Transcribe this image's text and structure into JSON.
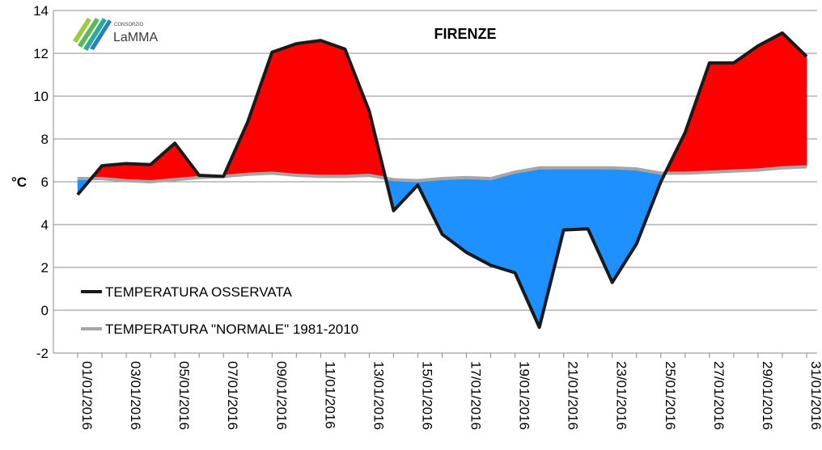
{
  "chart_data": {
    "type": "area",
    "title": "FIRENZE",
    "ylabel": "°C",
    "ylim": [
      -2,
      14
    ],
    "yticks": [
      -2,
      0,
      2,
      4,
      6,
      8,
      10,
      12,
      14
    ],
    "grid": true,
    "legend_placement": "bottom-left",
    "x": [
      "01/01/2016",
      "02/01/2016",
      "03/01/2016",
      "04/01/2016",
      "05/01/2016",
      "06/01/2016",
      "07/01/2016",
      "08/01/2016",
      "09/01/2016",
      "10/01/2016",
      "11/01/2016",
      "12/01/2016",
      "13/01/2016",
      "14/01/2016",
      "15/01/2016",
      "16/01/2016",
      "17/01/2016",
      "18/01/2016",
      "19/01/2016",
      "20/01/2016",
      "21/01/2016",
      "22/01/2016",
      "23/01/2016",
      "24/01/2016",
      "25/01/2016",
      "26/01/2016",
      "27/01/2016",
      "28/01/2016",
      "29/01/2016",
      "30/01/2016",
      "31/01/2016"
    ],
    "xtick_labels": [
      "01/01/2016",
      "03/01/2016",
      "05/01/2016",
      "07/01/2016",
      "09/01/2016",
      "11/01/2016",
      "13/01/2016",
      "15/01/2016",
      "17/01/2016",
      "19/01/2016",
      "21/01/2016",
      "23/01/2016",
      "25/01/2016",
      "27/01/2016",
      "29/01/2016",
      "31/01/2016"
    ],
    "series": [
      {
        "name": "TEMPERATURA OSSERVATA",
        "color": "#1a1a1a",
        "values": [
          5.4,
          6.75,
          6.85,
          6.8,
          7.8,
          6.3,
          6.25,
          8.8,
          12.05,
          12.45,
          12.6,
          12.2,
          9.3,
          4.65,
          5.85,
          3.55,
          2.7,
          2.1,
          1.75,
          -0.8,
          3.75,
          3.8,
          1.3,
          3.1,
          6.0,
          8.3,
          11.55,
          11.55,
          12.35,
          12.95,
          11.85
        ]
      },
      {
        "name": "TEMPERATURA \"NORMALE\" 1981-2010",
        "color": "#a6a6a6",
        "values": [
          6.15,
          6.15,
          6.05,
          6.0,
          6.1,
          6.2,
          6.25,
          6.35,
          6.4,
          6.3,
          6.25,
          6.25,
          6.3,
          6.1,
          6.05,
          6.15,
          6.2,
          6.15,
          6.45,
          6.65,
          6.65,
          6.65,
          6.65,
          6.6,
          6.4,
          6.4,
          6.45,
          6.5,
          6.55,
          6.65,
          6.7
        ]
      }
    ],
    "fill_colors": {
      "above_normal": "#ff0000",
      "below_normal": "#1e90ff"
    }
  },
  "logo": {
    "small_text": "CONSORZIO",
    "name": "LaMMA"
  }
}
